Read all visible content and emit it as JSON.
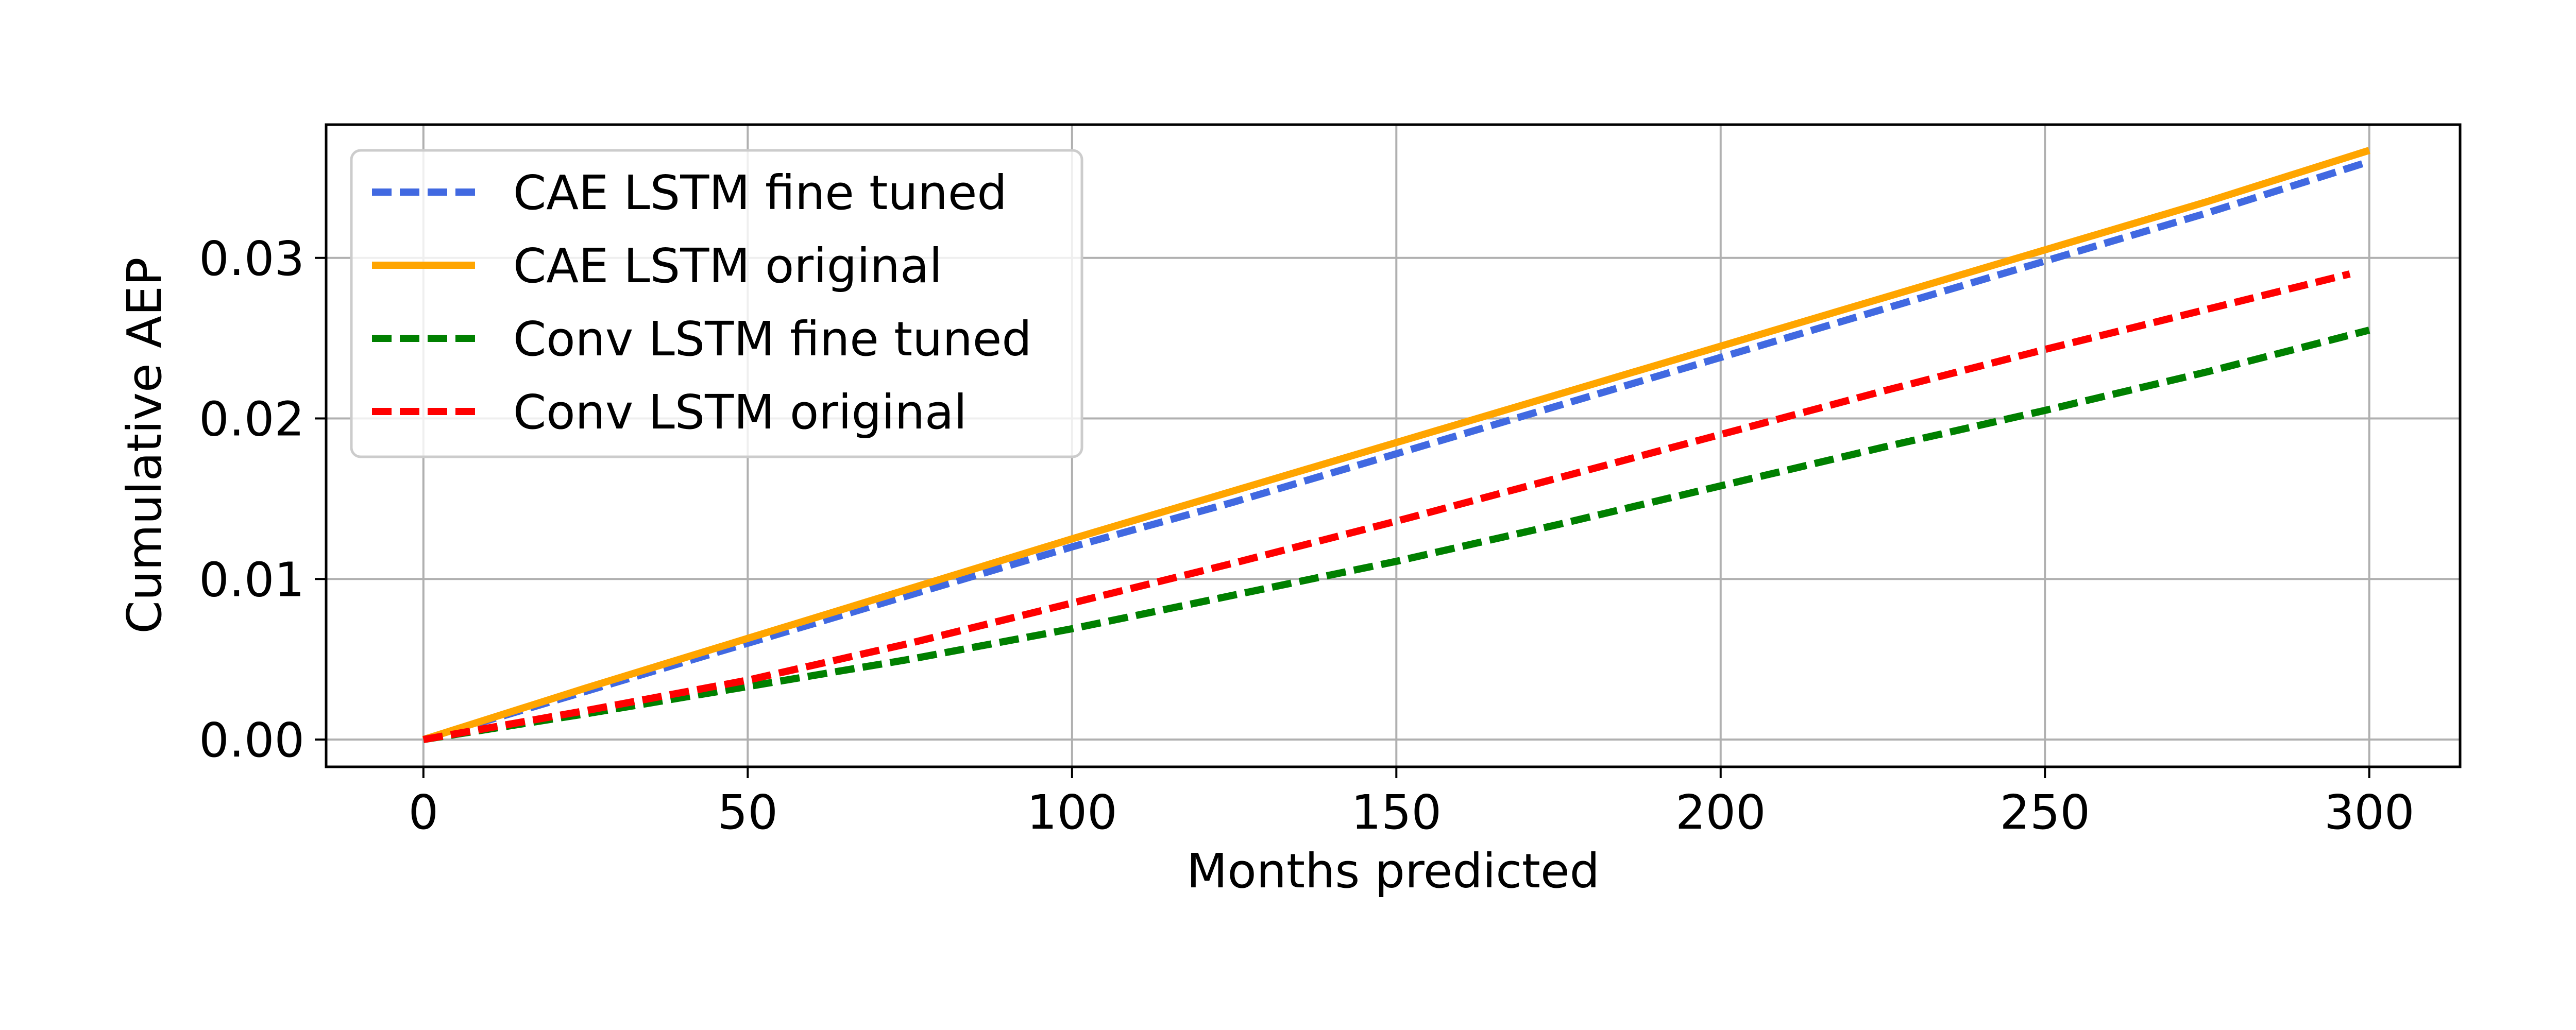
{
  "chart_data": {
    "type": "line",
    "title": "",
    "xlabel": "Months predicted",
    "ylabel": "Cumulative AEP",
    "xlim": [
      -15,
      314
    ],
    "ylim": [
      -0.0017,
      0.0383
    ],
    "x_ticks": [
      0,
      50,
      100,
      150,
      200,
      250,
      300
    ],
    "x_tick_labels": [
      "0",
      "50",
      "100",
      "150",
      "200",
      "250",
      "300"
    ],
    "y_ticks": [
      0.0,
      0.01,
      0.02,
      0.03
    ],
    "y_tick_labels": [
      "0.00",
      "0.01",
      "0.02",
      "0.03"
    ],
    "grid": true,
    "legend_position": "upper-left",
    "series": [
      {
        "name": "CAE LSTM fine tuned",
        "color": "#4169e1",
        "line_style": "dashed",
        "x": [
          0,
          25,
          50,
          75,
          100,
          125,
          150,
          175,
          200,
          225,
          250,
          275,
          300
        ],
        "y": [
          0.0,
          0.003,
          0.006,
          0.009,
          0.012,
          0.0148,
          0.0178,
          0.0208,
          0.0238,
          0.0268,
          0.0298,
          0.0328,
          0.036
        ]
      },
      {
        "name": "CAE LSTM original",
        "color": "#ffa500",
        "line_style": "solid",
        "x": [
          0,
          25,
          50,
          75,
          100,
          125,
          150,
          175,
          200,
          225,
          250,
          275,
          300
        ],
        "y": [
          0.0,
          0.0032,
          0.0063,
          0.0094,
          0.0125,
          0.0155,
          0.0185,
          0.0215,
          0.0245,
          0.0275,
          0.0305,
          0.0335,
          0.0367
        ]
      },
      {
        "name": "Conv LSTM fine tuned",
        "color": "#008000",
        "line_style": "dashed",
        "x": [
          0,
          25,
          50,
          75,
          100,
          125,
          150,
          175,
          200,
          225,
          250,
          275,
          300
        ],
        "y": [
          0.0,
          0.0016,
          0.0033,
          0.005,
          0.0069,
          0.009,
          0.0111,
          0.0134,
          0.0158,
          0.0182,
          0.0205,
          0.0229,
          0.0255
        ]
      },
      {
        "name": "Conv LSTM original",
        "color": "#ff0000",
        "line_style": "dashed",
        "x": [
          0,
          25,
          50,
          75,
          100,
          125,
          150,
          175,
          200,
          225,
          250,
          275,
          297
        ],
        "y": [
          0.0,
          0.0018,
          0.0037,
          0.006,
          0.0085,
          0.011,
          0.0136,
          0.0163,
          0.019,
          0.0217,
          0.0243,
          0.0268,
          0.029
        ]
      }
    ]
  }
}
